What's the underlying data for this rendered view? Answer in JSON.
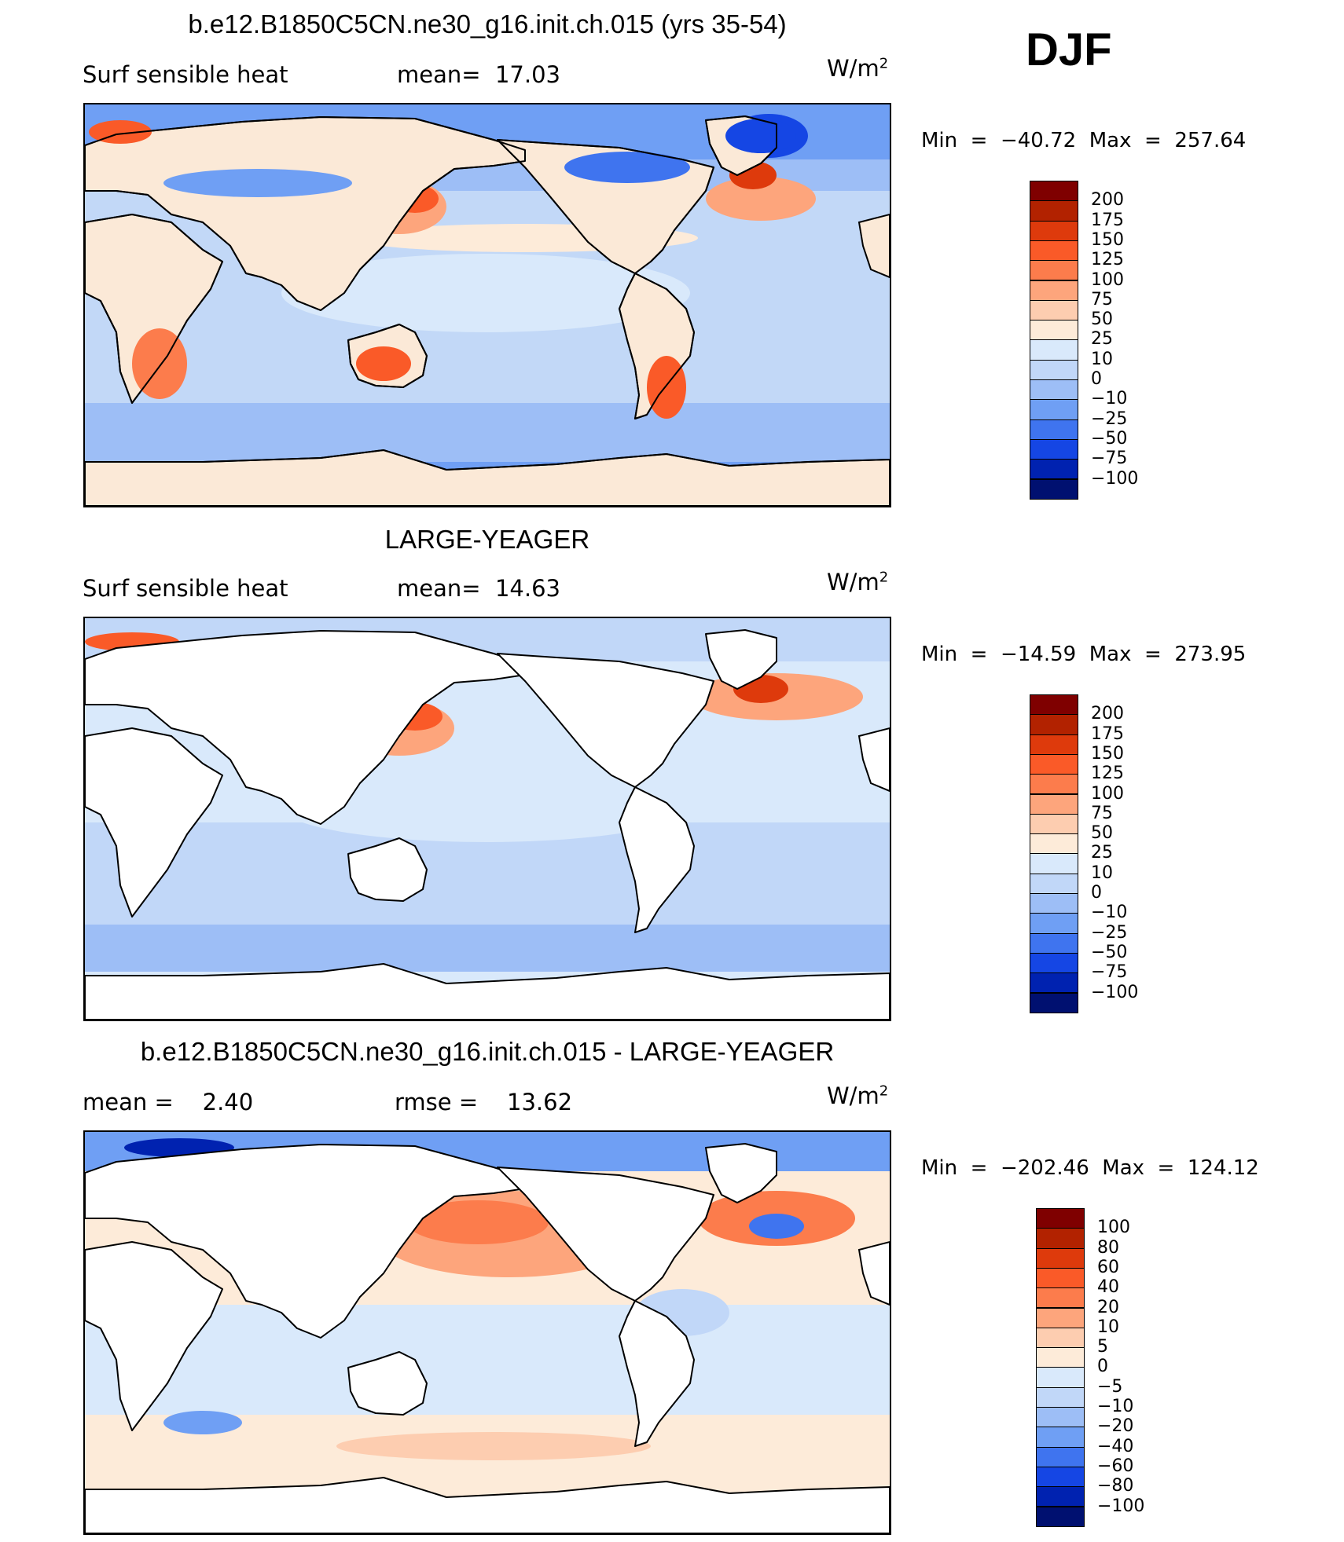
{
  "season": "DJF",
  "panels": [
    {
      "id": "model",
      "title": "b.e12.B1850C5CN.ne30_g16.init.ch.015 (yrs 35-54)",
      "left_text": "Surf sensible heat",
      "middle_text": "mean=  17.03",
      "units_text": "W/m",
      "units_sup": "2",
      "min_max": "Min  =  −40.72  Max  =  257.64",
      "levels": [
        "200",
        "175",
        "150",
        "125",
        "100",
        "75",
        "50",
        "25",
        "10",
        "0",
        "−10",
        "−25",
        "−50",
        "−75",
        "−100"
      ],
      "colors": [
        "#7f0000",
        "#b22200",
        "#de3a0c",
        "#fa5a28",
        "#fc7c4c",
        "#fda57c",
        "#fdcdb0",
        "#fdebd9",
        "#d9e9fb",
        "#c1d7f8",
        "#9dbef6",
        "#6f9ff4",
        "#3f74ef",
        "#1546e4",
        "#0022b0",
        "#001070"
      ],
      "land_color": "#fbe9d7",
      "ocean_color": "#c2d8f7"
    },
    {
      "id": "obs",
      "title": "LARGE-YEAGER",
      "left_text": "Surf sensible heat",
      "middle_text": "mean=  14.63",
      "units_text": "W/m",
      "units_sup": "2",
      "min_max": "Min  =  −14.59  Max  =  273.95",
      "levels": [
        "200",
        "175",
        "150",
        "125",
        "100",
        "75",
        "50",
        "25",
        "10",
        "0",
        "−10",
        "−25",
        "−50",
        "−75",
        "−100"
      ],
      "colors": [
        "#7f0000",
        "#b22200",
        "#de3a0c",
        "#fa5a28",
        "#fc7c4c",
        "#fda57c",
        "#fdcdb0",
        "#fdebd9",
        "#d9e9fb",
        "#c1d7f8",
        "#9dbef6",
        "#6f9ff4",
        "#3f74ef",
        "#1546e4",
        "#0022b0",
        "#001070"
      ],
      "land_color": "#ffffff",
      "ocean_color": "#c2d8f7"
    },
    {
      "id": "diff",
      "title": "b.e12.B1850C5CN.ne30_g16.init.ch.015 - LARGE-YEAGER",
      "left_text": "mean =    2.40",
      "middle_text": "rmse =    13.62",
      "units_text": "W/m",
      "units_sup": "2",
      "min_max": "Min  =  −202.46  Max  =  124.12",
      "levels": [
        "100",
        "80",
        "60",
        "40",
        "20",
        "10",
        "5",
        "0",
        "−5",
        "−10",
        "−20",
        "−40",
        "−60",
        "−80",
        "−100"
      ],
      "colors": [
        "#7f0000",
        "#b22200",
        "#de3a0c",
        "#fa5a28",
        "#fc7c4c",
        "#fda57c",
        "#fdcdb0",
        "#fdebd9",
        "#d9e9fb",
        "#c1d7f8",
        "#9dbef6",
        "#6f9ff4",
        "#3f74ef",
        "#1546e4",
        "#0022b0",
        "#001070"
      ],
      "land_color": "#ffffff",
      "ocean_color": "#fdebd9"
    }
  ],
  "chart_data": [
    {
      "type": "heatmap",
      "title": "b.e12.B1850C5CN.ne30_g16.init.ch.015 (yrs 35-54)",
      "variable": "Surf sensible heat",
      "season": "DJF",
      "mean": 17.03,
      "min": -40.72,
      "max": 257.64,
      "units": "W/m2",
      "contour_levels": [
        -100,
        -75,
        -50,
        -25,
        -10,
        0,
        10,
        25,
        50,
        75,
        100,
        125,
        150,
        175,
        200
      ]
    },
    {
      "type": "heatmap",
      "title": "LARGE-YEAGER",
      "variable": "Surf sensible heat",
      "season": "DJF",
      "mean": 14.63,
      "min": -14.59,
      "max": 273.95,
      "units": "W/m2",
      "contour_levels": [
        -100,
        -75,
        -50,
        -25,
        -10,
        0,
        10,
        25,
        50,
        75,
        100,
        125,
        150,
        175,
        200
      ]
    },
    {
      "type": "heatmap",
      "title": "b.e12.B1850C5CN.ne30_g16.init.ch.015 - LARGE-YEAGER",
      "season": "DJF",
      "mean": 2.4,
      "rmse": 13.62,
      "min": -202.46,
      "max": 124.12,
      "units": "W/m2",
      "contour_levels": [
        -100,
        -80,
        -60,
        -40,
        -20,
        -10,
        -5,
        0,
        5,
        10,
        20,
        40,
        60,
        80,
        100
      ]
    }
  ]
}
